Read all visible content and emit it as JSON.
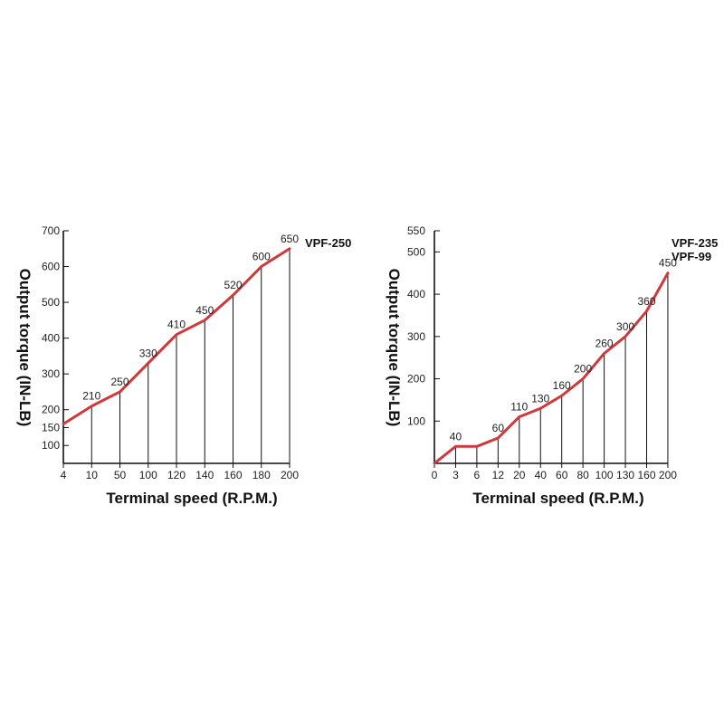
{
  "chart_data": [
    {
      "type": "line",
      "xlabel": "Terminal speed (R.P.M.)",
      "ylabel": "Output torque (IN-LB)",
      "model_labels": [
        "VPF-250"
      ],
      "x_ticks": [
        "4",
        "10",
        "50",
        "100",
        "120",
        "140",
        "160",
        "180",
        "200"
      ],
      "y_ticks": [
        700,
        600,
        500,
        400,
        300,
        200,
        150,
        100
      ],
      "ylim": [
        50,
        700
      ],
      "series": [
        {
          "x": [
            "4",
            "10",
            "50",
            "100",
            "120",
            "140",
            "160",
            "180",
            "200"
          ],
          "values": [
            160,
            210,
            250,
            330,
            410,
            450,
            520,
            600,
            650
          ],
          "data_labels": [
            "",
            "210",
            "250",
            "330",
            "410",
            "450",
            "520",
            "600",
            "650"
          ]
        }
      ],
      "line_color": "#d0393b"
    },
    {
      "type": "line",
      "xlabel": "Terminal speed (R.P.M.)",
      "ylabel": "Output torque (IN-LB)",
      "model_labels": [
        "VPF-235",
        "VPF-99"
      ],
      "x_ticks": [
        "0",
        "3",
        "6",
        "12",
        "20",
        "40",
        "60",
        "80",
        "100",
        "130",
        "160",
        "200"
      ],
      "y_ticks": [
        550,
        500,
        400,
        300,
        200,
        100
      ],
      "ylim": [
        0,
        550
      ],
      "series": [
        {
          "x": [
            "0",
            "3",
            "6",
            "12",
            "20",
            "40",
            "60",
            "80",
            "100",
            "130",
            "160",
            "200"
          ],
          "values": [
            0,
            40,
            40,
            60,
            110,
            130,
            160,
            200,
            260,
            300,
            360,
            450
          ],
          "data_labels": [
            "",
            "40",
            "",
            "60",
            "110",
            "130",
            "160",
            "200",
            "260",
            "300",
            "360",
            "450"
          ]
        }
      ],
      "line_color": "#d0393b"
    }
  ]
}
